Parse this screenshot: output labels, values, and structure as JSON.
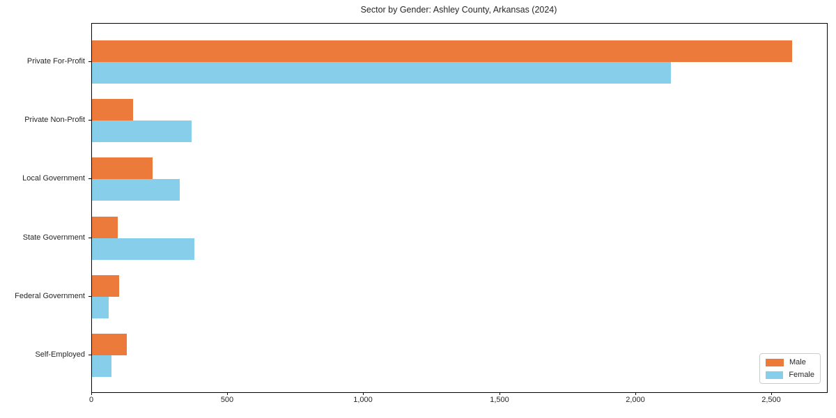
{
  "chart_data": {
    "type": "bar",
    "orientation": "horizontal",
    "title": "Sector by Gender: Ashley County, Arkansas (2024)",
    "xlabel": "",
    "ylabel": "",
    "categories": [
      "Private For-Profit",
      "Private Non-Profit",
      "Local Government",
      "State Government",
      "Federal Government",
      "Self-Employed"
    ],
    "series": [
      {
        "name": "Male",
        "color": "#EB7A3B",
        "values": [
          2573,
          150,
          224,
          95,
          100,
          128
        ]
      },
      {
        "name": "Female",
        "color": "#87CEEB",
        "values": [
          2128,
          365,
          323,
          377,
          61,
          72
        ]
      }
    ],
    "xlim": [
      0,
      2702
    ],
    "xticks": {
      "values": [
        0,
        500,
        1000,
        1500,
        2000,
        2500
      ],
      "labels": [
        "0",
        "500",
        "1,000",
        "1,500",
        "2,000",
        "2,500"
      ]
    },
    "grid": false,
    "legend_position": "lower-right",
    "frame_color": "#000000",
    "text_color": "#262626"
  }
}
